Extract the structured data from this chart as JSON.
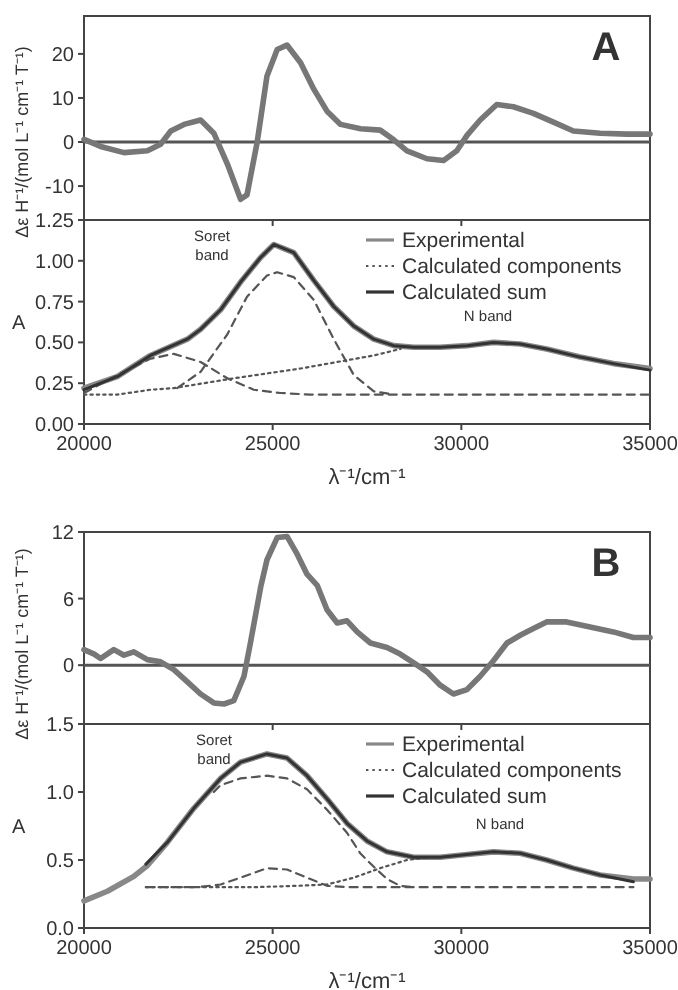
{
  "chart_data": [
    {
      "type": "line",
      "xlim": [
        20000,
        35000
      ],
      "xticks": [
        20000,
        25000,
        30000,
        35000
      ],
      "ylim": [
        -17.7,
        28.6
      ],
      "yticks": [
        -10,
        0,
        10,
        20
      ],
      "tick_labels": "y",
      "ylabel": "Δε H⁻¹/(mol L⁻¹ cm⁻¹ T⁻¹)",
      "annotations": [
        "A"
      ],
      "ref_lines": [
        {
          "axis": "y",
          "value": 0,
          "color": "#555555"
        }
      ],
      "series": [
        {
          "color": "#777777",
          "line_style": "solid",
          "x": [
            20000,
            20440,
            21060,
            21680,
            22030,
            22300,
            22650,
            23090,
            23440,
            23800,
            24150,
            24320,
            24590,
            24850,
            25120,
            25380,
            25740,
            26090,
            26440,
            26800,
            27330,
            27850,
            28210,
            28560,
            29090,
            29530,
            29880,
            30150,
            30500,
            30940,
            31380,
            31910,
            32440,
            32970,
            33680,
            34390,
            35000
          ],
          "values": [
            0.6,
            -1,
            -2.4,
            -2,
            -0.5,
            2.5,
            4,
            5,
            2,
            -5,
            -13,
            -12,
            0,
            15,
            21,
            22,
            18,
            12,
            7,
            4,
            3,
            2.7,
            0.5,
            -2,
            -3.8,
            -4.2,
            -2,
            1.5,
            5,
            8.5,
            8,
            6.5,
            4.5,
            2.5,
            2,
            1.8,
            1.8
          ]
        }
      ]
    },
    {
      "type": "line",
      "xlim": [
        20000,
        35000
      ],
      "xticks": [
        20000,
        25000,
        30000,
        35000
      ],
      "ylim": [
        0,
        1.25
      ],
      "yticks": [
        {
          "value": 0,
          "label": "0.00"
        },
        {
          "value": 0.25,
          "label": "0.25"
        },
        {
          "value": 0.5,
          "label": "0.50"
        },
        {
          "value": 0.75,
          "label": "0.75"
        },
        {
          "value": 1,
          "label": "1.00"
        },
        {
          "value": 1.25,
          "label": "1.25"
        }
      ],
      "xlabel": "λ⁻¹/cm⁻¹",
      "ylabel": "A",
      "legend": "top right",
      "annotations": [
        "Soret band",
        "N band"
      ],
      "series": [
        {
          "name": "Experimental",
          "color": "#888888",
          "line_style": "solid",
          "x": [
            20000,
            20880,
            21760,
            22740,
            23090,
            23620,
            24150,
            24680,
            25030,
            25560,
            26090,
            26620,
            27150,
            27680,
            28210,
            28740,
            29440,
            30150,
            30850,
            31560,
            32260,
            33150,
            34030,
            35000
          ],
          "values": [
            0.22,
            0.29,
            0.42,
            0.52,
            0.58,
            0.7,
            0.87,
            1.02,
            1.1,
            1.05,
            0.88,
            0.72,
            0.6,
            0.52,
            0.48,
            0.47,
            0.47,
            0.48,
            0.5,
            0.49,
            0.46,
            0.41,
            0.37,
            0.34
          ]
        },
        {
          "name": "Calculated components",
          "color": "#555555",
          "line_style": "dotted",
          "x": [
            20000,
            20880,
            21760,
            22380,
            23970,
            25740,
            27680,
            28390
          ],
          "values": [
            0.18,
            0.18,
            0.21,
            0.22,
            0.28,
            0.34,
            0.42,
            0.46
          ]
        },
        {
          "color": "#555555",
          "line_style": "dashed",
          "x": [
            22470,
            23090,
            23800,
            24320,
            24850,
            25120,
            25560,
            26090,
            26620,
            27150,
            27680,
            28210
          ],
          "values": [
            0.22,
            0.32,
            0.55,
            0.78,
            0.91,
            0.93,
            0.9,
            0.76,
            0.52,
            0.3,
            0.2,
            0.18
          ]
        },
        {
          "color": "#555555",
          "line_style": "dashed",
          "x": [
            20000,
            20880,
            21760,
            22380,
            23090,
            23800,
            24500,
            25210,
            26000,
            28000,
            30000,
            32000,
            35000
          ],
          "values": [
            0.19,
            0.3,
            0.4,
            0.43,
            0.38,
            0.28,
            0.21,
            0.19,
            0.18,
            0.18,
            0.18,
            0.18,
            0.18
          ]
        },
        {
          "name": "Calculated sum",
          "color": "#333333",
          "line_style": "solid",
          "x": [
            20000,
            20880,
            21760,
            22740,
            23090,
            23620,
            24150,
            24680,
            25030,
            25560,
            26090,
            26620,
            27150,
            27680,
            28210,
            28740,
            29440,
            30150,
            30850,
            31560,
            32260,
            33150,
            34030,
            35000
          ],
          "values": [
            0.21,
            0.29,
            0.42,
            0.52,
            0.58,
            0.7,
            0.87,
            1.02,
            1.1,
            1.05,
            0.88,
            0.72,
            0.6,
            0.52,
            0.48,
            0.47,
            0.47,
            0.48,
            0.5,
            0.49,
            0.46,
            0.41,
            0.37,
            0.33
          ]
        }
      ]
    },
    {
      "type": "line",
      "xlim": [
        20000,
        35000
      ],
      "xticks": [
        20000,
        25000,
        30000,
        35000
      ],
      "ylim": [
        -5.3,
        12
      ],
      "yticks": [
        0,
        6,
        12
      ],
      "tick_labels": "y",
      "ylabel": "Δε H⁻¹/(mol L⁻¹ cm⁻¹ T⁻¹)",
      "annotations": [
        "B"
      ],
      "ref_lines": [
        {
          "axis": "y",
          "value": 0,
          "color": "#555555"
        }
      ],
      "series": [
        {
          "color": "#777777",
          "line_style": "solid",
          "x": [
            20000,
            20270,
            20440,
            20790,
            21060,
            21320,
            21680,
            22030,
            22380,
            22740,
            23090,
            23440,
            23710,
            23970,
            24240,
            24410,
            24680,
            24850,
            25120,
            25380,
            25650,
            25910,
            26180,
            26440,
            26710,
            26970,
            27240,
            27590,
            28030,
            28380,
            28740,
            29090,
            29440,
            29790,
            30150,
            30500,
            30850,
            31210,
            31560,
            31910,
            32260,
            32790,
            33320,
            34030,
            34560,
            35000
          ],
          "values": [
            1.4,
            1,
            0.6,
            1.4,
            0.9,
            1.2,
            0.5,
            0.3,
            -0.4,
            -1.5,
            -2.6,
            -3.4,
            -3.5,
            -3.2,
            -1,
            2,
            7,
            9.5,
            11.5,
            11.6,
            10,
            8.2,
            7.2,
            5,
            3.8,
            4,
            3,
            2,
            1.6,
            1,
            0.2,
            -0.6,
            -1.8,
            -2.6,
            -2.2,
            -1,
            0.4,
            2,
            2.7,
            3.3,
            3.9,
            3.9,
            3.5,
            3,
            2.5,
            2.5
          ]
        }
      ]
    },
    {
      "type": "line",
      "xlim": [
        20000,
        35000
      ],
      "xticks": [
        20000,
        25000,
        30000,
        35000
      ],
      "ylim": [
        0,
        1.5
      ],
      "yticks": [
        {
          "value": 0,
          "label": "0.0"
        },
        {
          "value": 0.5,
          "label": "0.5"
        },
        {
          "value": 1,
          "label": "1.0"
        },
        {
          "value": 1.5,
          "label": "1.5"
        }
      ],
      "xlabel": "λ⁻¹/cm⁻¹",
      "ylabel": "A",
      "legend": "top right",
      "annotations": [
        "Soret band",
        "N band"
      ],
      "series": [
        {
          "name": "Experimental",
          "color": "#888888",
          "line_style": "solid",
          "x": [
            20000,
            20620,
            21320,
            21680,
            22210,
            22910,
            23620,
            24150,
            24850,
            25380,
            25910,
            26440,
            26970,
            27500,
            28030,
            28740,
            29440,
            30150,
            30850,
            31560,
            32260,
            32970,
            33680,
            34560,
            35000
          ],
          "values": [
            0.2,
            0.27,
            0.38,
            0.46,
            0.63,
            0.88,
            1.1,
            1.22,
            1.28,
            1.25,
            1.12,
            0.95,
            0.77,
            0.64,
            0.56,
            0.52,
            0.52,
            0.54,
            0.56,
            0.55,
            0.5,
            0.44,
            0.39,
            0.36,
            0.36
          ]
        },
        {
          "name": "Calculated components",
          "color": "#555555",
          "line_style": "dotted",
          "x": [
            21640,
            23000,
            24500,
            25650,
            26440,
            27150,
            27850,
            28560,
            29090
          ],
          "values": [
            0.3,
            0.3,
            0.3,
            0.31,
            0.32,
            0.37,
            0.44,
            0.5,
            0.52
          ]
        },
        {
          "color": "#555555",
          "line_style": "dashed",
          "x": [
            23440,
            23620,
            24150,
            24850,
            25380,
            25910,
            26440,
            26970,
            27320,
            27680,
            28030,
            28380,
            28740
          ],
          "values": [
            1,
            1.05,
            1.1,
            1.12,
            1.1,
            1.02,
            0.87,
            0.7,
            0.55,
            0.45,
            0.36,
            0.31,
            0.3
          ]
        },
        {
          "color": "#555555",
          "line_style": "dashed",
          "x": [
            21640,
            23000,
            23620,
            24150,
            24850,
            25380,
            25910,
            26440,
            26970,
            28000,
            30000,
            32000,
            34560
          ],
          "values": [
            0.3,
            0.3,
            0.32,
            0.37,
            0.44,
            0.43,
            0.37,
            0.31,
            0.3,
            0.3,
            0.3,
            0.3,
            0.3
          ]
        },
        {
          "name": "Calculated sum",
          "color": "#333333",
          "line_style": "solid",
          "x": [
            21640,
            22210,
            22910,
            23620,
            24150,
            24850,
            25380,
            25910,
            26440,
            26970,
            27500,
            28030,
            28740,
            29440,
            30150,
            30850,
            31560,
            32260,
            32970,
            33680,
            34560
          ],
          "values": [
            0.47,
            0.63,
            0.88,
            1.1,
            1.22,
            1.28,
            1.25,
            1.12,
            0.95,
            0.77,
            0.64,
            0.56,
            0.52,
            0.52,
            0.54,
            0.56,
            0.55,
            0.5,
            0.44,
            0.39,
            0.34
          ]
        }
      ]
    }
  ]
}
